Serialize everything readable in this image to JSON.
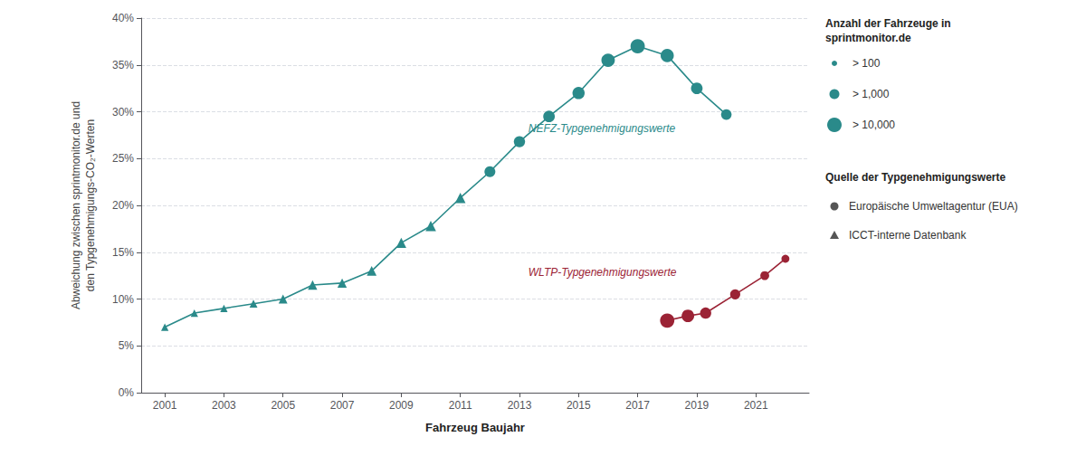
{
  "chart_data": {
    "type": "line",
    "xlabel": "Fahrzeug Baujahr",
    "ylabel": "Abweichung zwischen sprintmonitor.de und\nden Typgenehmigungs-CO₂-Werten",
    "series": [
      {
        "name": "NEFZ-Typgenehmigungswerte",
        "color": "#2a8a8a",
        "x": [
          2001,
          2002,
          2003,
          2004,
          2005,
          2006,
          2007,
          2008,
          2009,
          2010,
          2011,
          2012,
          2013,
          2014,
          2015,
          2016,
          2017,
          2018,
          2019,
          2020
        ],
        "values": [
          0.07,
          0.085,
          0.09,
          0.095,
          0.1,
          0.115,
          0.117,
          0.13,
          0.16,
          0.178,
          0.208,
          0.236,
          0.268,
          0.295,
          0.32,
          0.355,
          0.37,
          0.36,
          0.325,
          0.297
        ],
        "sizes": [
          35,
          35,
          35,
          40,
          50,
          55,
          55,
          60,
          65,
          70,
          70,
          75,
          80,
          85,
          95,
          115,
          130,
          110,
          85,
          70
        ],
        "markers": [
          "triangle",
          "triangle",
          "triangle",
          "triangle",
          "triangle",
          "triangle",
          "triangle",
          "triangle",
          "triangle",
          "triangle",
          "triangle",
          "circle",
          "circle",
          "circle",
          "circle",
          "circle",
          "circle",
          "circle",
          "circle",
          "circle"
        ]
      },
      {
        "name": "WLTP-Typgenehmigungswerte",
        "color": "#9b2335",
        "x": [
          2018.0,
          2018.7,
          2019.3,
          2020.3,
          2021.3,
          2022.0
        ],
        "values": [
          0.077,
          0.082,
          0.085,
          0.105,
          0.125,
          0.143
        ],
        "sizes": [
          130,
          100,
          80,
          65,
          50,
          40
        ],
        "marker": "circle"
      }
    ],
    "annotations": [
      {
        "text": "NEFZ-Typgenehmigungswerte",
        "x": 2013.3,
        "y": 0.276,
        "color": "#2a8a8a"
      },
      {
        "text": "WLTP-Typgenehmigungswerte",
        "x": 2013.3,
        "y": 0.123,
        "color": "#9b2335"
      }
    ],
    "xlim": [
      2000.2,
      2022.8
    ],
    "ylim": [
      0.0,
      0.4
    ],
    "xticks": [
      2001,
      2003,
      2005,
      2007,
      2009,
      2011,
      2013,
      2015,
      2017,
      2019,
      2021
    ],
    "yticks": [
      {
        "value": 0.0,
        "label": "0%"
      },
      {
        "value": 0.05,
        "label": "5%"
      },
      {
        "value": 0.1,
        "label": "10%"
      },
      {
        "value": 0.15,
        "label": "15%"
      },
      {
        "value": 0.2,
        "label": "20%"
      },
      {
        "value": 0.25,
        "label": "25%"
      },
      {
        "value": 0.3,
        "label": "30%"
      },
      {
        "value": 0.35,
        "label": "35%"
      },
      {
        "value": 0.4,
        "label": "40%"
      }
    ],
    "grid": true,
    "size_legend": {
      "title": "Anzahl der Fahrzeuge in\nsprintmonitor.de",
      "items": [
        "> 100",
        "> 1,000",
        "> 10,000"
      ]
    },
    "marker_legend": {
      "title": "Quelle der Typgenehmigungswerte",
      "items": [
        {
          "label": "Europäische Umweltagentur (EUA)",
          "marker": "circle"
        },
        {
          "label": "ICCT-interne Datenbank",
          "marker": "triangle"
        }
      ]
    }
  }
}
